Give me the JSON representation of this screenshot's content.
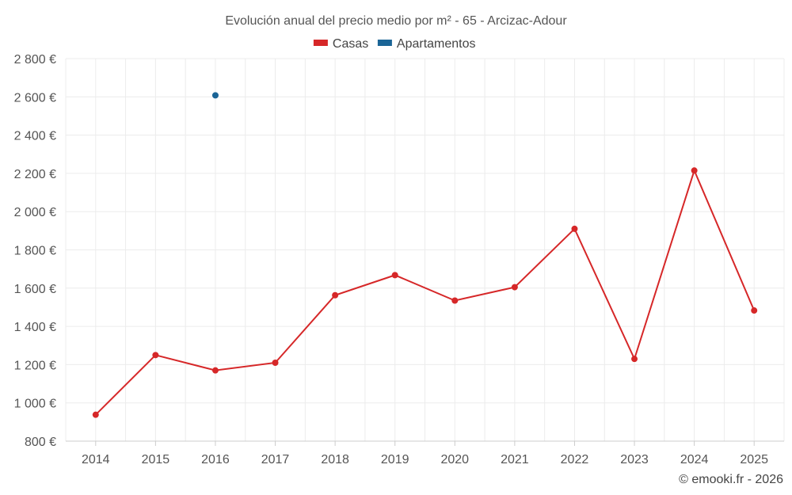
{
  "chart_data": {
    "type": "line",
    "title": "Evolución anual del precio medio por m² - 65 - Arcizac-Adour",
    "categories": [
      "2014",
      "2015",
      "2016",
      "2017",
      "2018",
      "2019",
      "2020",
      "2021",
      "2022",
      "2023",
      "2024",
      "2025"
    ],
    "series": [
      {
        "name": "Casas",
        "color": "#d62728",
        "values": [
          938,
          1250,
          1170,
          1210,
          1563,
          1668,
          1535,
          1605,
          1910,
          1230,
          2215,
          1483
        ]
      },
      {
        "name": "Apartamentos",
        "color": "#1a6496",
        "values": [
          null,
          null,
          2608,
          null,
          null,
          null,
          null,
          null,
          null,
          null,
          null,
          null
        ]
      }
    ],
    "ylim": [
      800,
      2800
    ],
    "yticks": [
      800,
      1000,
      1200,
      1400,
      1600,
      1800,
      2000,
      2200,
      2400,
      2600,
      2800
    ],
    "ytick_labels": [
      "800 €",
      "1 000 €",
      "1 200 €",
      "1 400 €",
      "1 600 €",
      "1 800 €",
      "2 000 €",
      "2 200 €",
      "2 400 €",
      "2 600 €",
      "2 800 €"
    ],
    "grid": true,
    "legend_position": "top-center",
    "xlabel": "",
    "ylabel": ""
  },
  "credit": "© emooki.fr - 2026"
}
